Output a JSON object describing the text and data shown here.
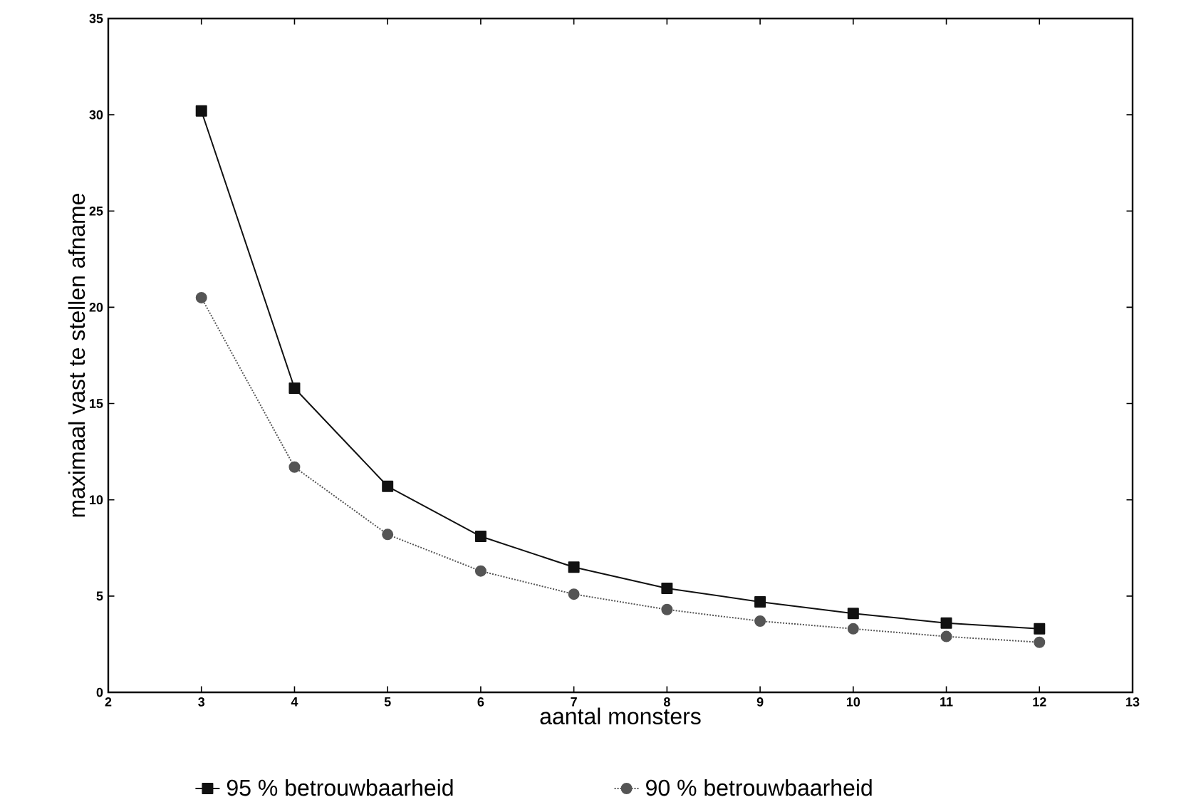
{
  "chart_data": {
    "type": "line",
    "xlabel": "aantal monsters",
    "ylabel": "maximaal vast te stellen afname",
    "x": [
      3,
      4,
      5,
      6,
      7,
      8,
      9,
      10,
      11,
      12
    ],
    "series": [
      {
        "name": "95 % betrouwbaarheid",
        "color": "#111111",
        "marker": "square",
        "line_style": "solid",
        "values": [
          30.2,
          15.8,
          10.7,
          8.1,
          6.5,
          5.4,
          4.7,
          4.1,
          3.6,
          3.3
        ]
      },
      {
        "name": "90 % betrouwbaarheid",
        "color": "#555555",
        "marker": "circle",
        "line_style": "dotted",
        "values": [
          20.5,
          11.7,
          8.2,
          6.3,
          5.1,
          4.3,
          3.7,
          3.3,
          2.9,
          2.6
        ]
      }
    ],
    "xlim": [
      2,
      13
    ],
    "ylim": [
      0,
      35
    ],
    "xticks": [
      2,
      3,
      4,
      5,
      6,
      7,
      8,
      9,
      10,
      11,
      12,
      13
    ],
    "yticks": [
      0,
      5,
      10,
      15,
      20,
      25,
      30,
      35
    ],
    "grid": false,
    "legend": "bottom"
  }
}
